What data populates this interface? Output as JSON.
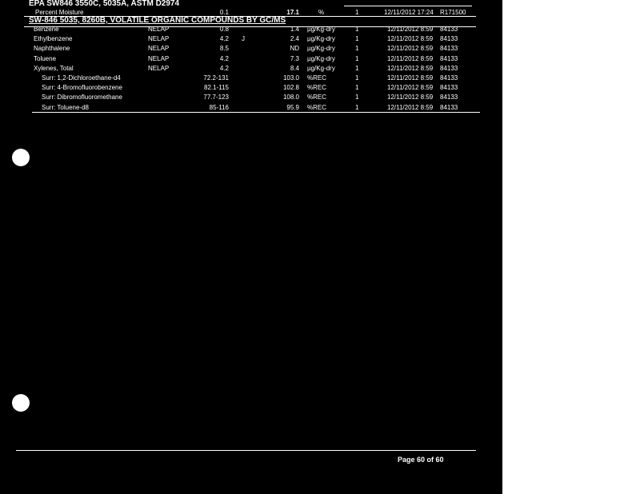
{
  "method_header": "EPA SW846 3550C, 5035A, ASTM D2974",
  "moisture": {
    "analyte": "Percent Moisture",
    "rl": "0.1",
    "result": "17.1",
    "units": "%",
    "df": "1",
    "analyzed": "12/11/2012 17:24",
    "batch": "R171500"
  },
  "section_title": "SW-846 5035, 8260B, VOLATILE ORGANIC COMPOUNDS BY GC/MS",
  "rows": [
    {
      "analyte": "Benzene",
      "cert": "NELAP",
      "rl": "0.8",
      "qual": "",
      "result": "1.4",
      "units": "µg/Kg-dry",
      "df": "1",
      "analyzed": "12/11/2012 8:59",
      "batch": "84133"
    },
    {
      "analyte": "Ethylbenzene",
      "cert": "NELAP",
      "rl": "4.2",
      "qual": "J",
      "result": "2.4",
      "units": "µg/Kg-dry",
      "df": "1",
      "analyzed": "12/11/2012 8:59",
      "batch": "84133"
    },
    {
      "analyte": "Naphthalene",
      "cert": "NELAP",
      "rl": "8.5",
      "qual": "",
      "result": "ND",
      "units": "µg/Kg-dry",
      "df": "1",
      "analyzed": "12/11/2012 8:59",
      "batch": "84133"
    },
    {
      "analyte": "Toluene",
      "cert": "NELAP",
      "rl": "4.2",
      "qual": "",
      "result": "7.3",
      "units": "µg/Kg-dry",
      "df": "1",
      "analyzed": "12/11/2012 8:59",
      "batch": "84133"
    },
    {
      "analyte": "Xylenes, Total",
      "cert": "NELAP",
      "rl": "4.2",
      "qual": "",
      "result": "8.4",
      "units": "µg/Kg-dry",
      "df": "1",
      "analyzed": "12/11/2012 8:59",
      "batch": "84133"
    },
    {
      "analyte": "Surr: 1,2-Dichloroethane-d4",
      "cert": "",
      "rl": "72.2-131",
      "qual": "",
      "result": "103.0",
      "units": "%REC",
      "df": "1",
      "analyzed": "12/11/2012 8:59",
      "batch": "84133"
    },
    {
      "analyte": "Surr: 4-Bromofluorobenzene",
      "cert": "",
      "rl": "82.1-115",
      "qual": "",
      "result": "102.8",
      "units": "%REC",
      "df": "1",
      "analyzed": "12/11/2012 8:59",
      "batch": "84133"
    },
    {
      "analyte": "Surr: Dibromofluoromethane",
      "cert": "",
      "rl": "77.7-123",
      "qual": "",
      "result": "108.0",
      "units": "%REC",
      "df": "1",
      "analyzed": "12/11/2012 8:59",
      "batch": "84133"
    },
    {
      "analyte": "Surr: Toluene-d8",
      "cert": "",
      "rl": "85-116",
      "qual": "",
      "result": "95.9",
      "units": "%REC",
      "df": "1",
      "analyzed": "12/11/2012 8:59",
      "batch": "84133"
    }
  ],
  "footer": {
    "page": "Page 60 of 60"
  }
}
